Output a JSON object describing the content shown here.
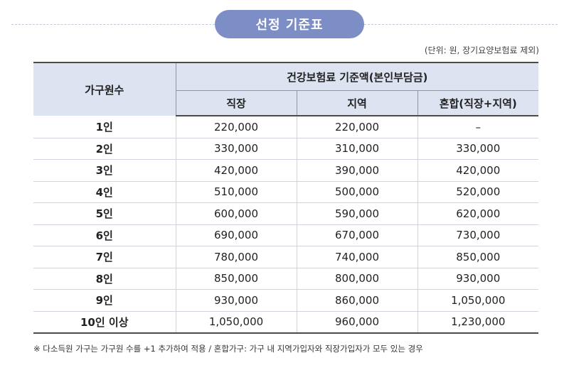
{
  "colors": {
    "accent_pill": "#7d8ec7",
    "header_bg": "#dde3f0"
  },
  "title": "선정 기준표",
  "unit_note": "(단위: 원, 장기요양보험료 제외)",
  "table": {
    "header_family": "가구원수",
    "header_group": "건강보험료 기준액(본인부담금)",
    "sub_headers": [
      "직장",
      "지역",
      "혼합(직장+지역)"
    ],
    "rows": [
      {
        "family": "1인",
        "work": "220,000",
        "region": "220,000",
        "mixed": "–"
      },
      {
        "family": "2인",
        "work": "330,000",
        "region": "310,000",
        "mixed": "330,000"
      },
      {
        "family": "3인",
        "work": "420,000",
        "region": "390,000",
        "mixed": "420,000"
      },
      {
        "family": "4인",
        "work": "510,000",
        "region": "500,000",
        "mixed": "520,000"
      },
      {
        "family": "5인",
        "work": "600,000",
        "region": "590,000",
        "mixed": "620,000"
      },
      {
        "family": "6인",
        "work": "690,000",
        "region": "670,000",
        "mixed": "730,000"
      },
      {
        "family": "7인",
        "work": "780,000",
        "region": "740,000",
        "mixed": "850,000"
      },
      {
        "family": "8인",
        "work": "850,000",
        "region": "800,000",
        "mixed": "930,000"
      },
      {
        "family": "9인",
        "work": "930,000",
        "region": "860,000",
        "mixed": "1,050,000"
      },
      {
        "family": "10인 이상",
        "work": "1,050,000",
        "region": "960,000",
        "mixed": "1,230,000"
      }
    ]
  },
  "footnote": "※ 다소득원 가구는 가구원 수를 +1 추가하여 적용 / 혼합가구: 가구 내 지역가입자와 직장가입자가 모두 있는 경우"
}
